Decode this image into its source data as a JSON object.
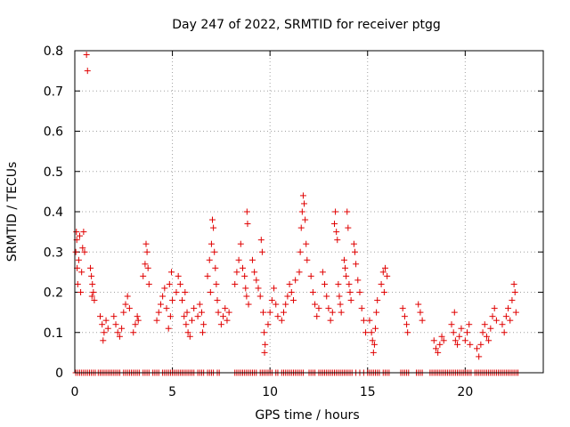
{
  "chart_data": {
    "type": "scatter",
    "title": "Day 247 of 2022, SRMTID for receiver ptgg",
    "xlabel": "GPS time / hours",
    "ylabel": "SRMTID / TECUs",
    "xlim": [
      0,
      24
    ],
    "ylim": [
      0,
      0.8
    ],
    "xticks": [
      0,
      5,
      10,
      15,
      20
    ],
    "yticks": [
      0,
      0.1,
      0.2,
      0.3,
      0.4,
      0.5,
      0.6,
      0.7,
      0.8
    ],
    "xtick_labels": [
      "0",
      "5",
      "10",
      "15",
      "20"
    ],
    "ytick_labels": [
      "0",
      "0.1",
      "0.2",
      "0.3",
      "0.4",
      "0.5",
      "0.6",
      "0.7",
      "0.8"
    ],
    "grid": true,
    "marker": "+",
    "marker_color": "#e00000",
    "series": [
      {
        "name": "SRMTID",
        "points": [
          [
            0.05,
            0.3
          ],
          [
            0.08,
            0.35
          ],
          [
            0.1,
            0.33
          ],
          [
            0.12,
            0.26
          ],
          [
            0.15,
            0.22
          ],
          [
            0.2,
            0.28
          ],
          [
            0.25,
            0.34
          ],
          [
            0.3,
            0.2
          ],
          [
            0.35,
            0.25
          ],
          [
            0.4,
            0.31
          ],
          [
            0.45,
            0.35
          ],
          [
            0.5,
            0.3
          ],
          [
            0.6,
            0.79
          ],
          [
            0.65,
            0.75
          ],
          [
            0.8,
            0.26
          ],
          [
            0.85,
            0.24
          ],
          [
            0.9,
            0.22
          ],
          [
            0.95,
            0.2
          ],
          [
            1.0,
            0.18
          ],
          [
            0.88,
            0.19
          ],
          [
            1.3,
            0.14
          ],
          [
            1.4,
            0.12
          ],
          [
            1.5,
            0.1
          ],
          [
            1.6,
            0.13
          ],
          [
            1.7,
            0.11
          ],
          [
            1.45,
            0.08
          ],
          [
            2.0,
            0.14
          ],
          [
            2.1,
            0.12
          ],
          [
            2.2,
            0.1
          ],
          [
            2.3,
            0.09
          ],
          [
            2.4,
            0.11
          ],
          [
            2.5,
            0.15
          ],
          [
            2.6,
            0.17
          ],
          [
            2.7,
            0.19
          ],
          [
            2.8,
            0.16
          ],
          [
            3.0,
            0.1
          ],
          [
            3.1,
            0.12
          ],
          [
            3.2,
            0.14
          ],
          [
            3.25,
            0.13
          ],
          [
            3.5,
            0.24
          ],
          [
            3.6,
            0.27
          ],
          [
            3.7,
            0.3
          ],
          [
            3.75,
            0.26
          ],
          [
            3.8,
            0.22
          ],
          [
            3.65,
            0.32
          ],
          [
            4.2,
            0.13
          ],
          [
            4.3,
            0.15
          ],
          [
            4.4,
            0.17
          ],
          [
            4.5,
            0.19
          ],
          [
            4.6,
            0.21
          ],
          [
            4.7,
            0.16
          ],
          [
            4.8,
            0.11
          ],
          [
            4.9,
            0.14
          ],
          [
            5.0,
            0.18
          ],
          [
            4.85,
            0.22
          ],
          [
            4.95,
            0.25
          ],
          [
            5.2,
            0.2
          ],
          [
            5.3,
            0.24
          ],
          [
            5.4,
            0.22
          ],
          [
            5.5,
            0.18
          ],
          [
            5.6,
            0.14
          ],
          [
            5.7,
            0.12
          ],
          [
            5.8,
            0.1
          ],
          [
            5.9,
            0.09
          ],
          [
            6.0,
            0.13
          ],
          [
            6.1,
            0.16
          ],
          [
            5.65,
            0.2
          ],
          [
            5.75,
            0.15
          ],
          [
            6.3,
            0.14
          ],
          [
            6.4,
            0.17
          ],
          [
            6.5,
            0.15
          ],
          [
            6.6,
            0.12
          ],
          [
            6.55,
            0.1
          ],
          [
            6.8,
            0.24
          ],
          [
            6.9,
            0.28
          ],
          [
            7.0,
            0.32
          ],
          [
            7.05,
            0.38
          ],
          [
            7.1,
            0.36
          ],
          [
            7.15,
            0.3
          ],
          [
            7.2,
            0.26
          ],
          [
            7.25,
            0.22
          ],
          [
            7.3,
            0.18
          ],
          [
            7.35,
            0.15
          ],
          [
            6.95,
            0.2
          ],
          [
            7.5,
            0.12
          ],
          [
            7.6,
            0.14
          ],
          [
            7.7,
            0.16
          ],
          [
            7.8,
            0.13
          ],
          [
            7.9,
            0.15
          ],
          [
            8.2,
            0.22
          ],
          [
            8.3,
            0.25
          ],
          [
            8.4,
            0.28
          ],
          [
            8.5,
            0.32
          ],
          [
            8.6,
            0.26
          ],
          [
            8.7,
            0.24
          ],
          [
            8.75,
            0.21
          ],
          [
            8.8,
            0.19
          ],
          [
            8.9,
            0.17
          ],
          [
            8.85,
            0.37
          ],
          [
            8.82,
            0.4
          ],
          [
            9.1,
            0.28
          ],
          [
            9.2,
            0.25
          ],
          [
            9.3,
            0.23
          ],
          [
            9.4,
            0.21
          ],
          [
            9.5,
            0.19
          ],
          [
            9.55,
            0.33
          ],
          [
            9.6,
            0.3
          ],
          [
            9.65,
            0.15
          ],
          [
            9.7,
            0.1
          ],
          [
            9.75,
            0.07
          ],
          [
            9.72,
            0.05
          ],
          [
            9.9,
            0.12
          ],
          [
            10.0,
            0.15
          ],
          [
            10.1,
            0.18
          ],
          [
            10.2,
            0.21
          ],
          [
            10.3,
            0.17
          ],
          [
            10.4,
            0.14
          ],
          [
            10.6,
            0.13
          ],
          [
            10.7,
            0.15
          ],
          [
            10.8,
            0.17
          ],
          [
            10.9,
            0.19
          ],
          [
            11.0,
            0.22
          ],
          [
            11.1,
            0.2
          ],
          [
            11.2,
            0.18
          ],
          [
            11.3,
            0.23
          ],
          [
            11.5,
            0.25
          ],
          [
            11.55,
            0.3
          ],
          [
            11.6,
            0.36
          ],
          [
            11.65,
            0.4
          ],
          [
            11.7,
            0.44
          ],
          [
            11.75,
            0.42
          ],
          [
            11.8,
            0.38
          ],
          [
            11.85,
            0.32
          ],
          [
            11.9,
            0.28
          ],
          [
            12.1,
            0.24
          ],
          [
            12.2,
            0.2
          ],
          [
            12.3,
            0.17
          ],
          [
            12.4,
            0.14
          ],
          [
            12.5,
            0.16
          ],
          [
            12.7,
            0.25
          ],
          [
            12.8,
            0.22
          ],
          [
            12.9,
            0.19
          ],
          [
            13.0,
            0.16
          ],
          [
            13.1,
            0.13
          ],
          [
            13.2,
            0.15
          ],
          [
            13.3,
            0.37
          ],
          [
            13.35,
            0.4
          ],
          [
            13.4,
            0.35
          ],
          [
            13.45,
            0.33
          ],
          [
            13.5,
            0.22
          ],
          [
            13.55,
            0.19
          ],
          [
            13.6,
            0.17
          ],
          [
            13.65,
            0.15
          ],
          [
            13.8,
            0.28
          ],
          [
            13.85,
            0.26
          ],
          [
            13.9,
            0.24
          ],
          [
            13.95,
            0.4
          ],
          [
            14.0,
            0.36
          ],
          [
            14.05,
            0.22
          ],
          [
            14.1,
            0.2
          ],
          [
            14.15,
            0.18
          ],
          [
            14.3,
            0.32
          ],
          [
            14.35,
            0.3
          ],
          [
            14.4,
            0.27
          ],
          [
            14.5,
            0.23
          ],
          [
            14.6,
            0.2
          ],
          [
            14.7,
            0.16
          ],
          [
            14.8,
            0.13
          ],
          [
            14.9,
            0.1
          ],
          [
            15.1,
            0.13
          ],
          [
            15.2,
            0.1
          ],
          [
            15.25,
            0.08
          ],
          [
            15.3,
            0.05
          ],
          [
            15.35,
            0.07
          ],
          [
            15.4,
            0.11
          ],
          [
            15.45,
            0.15
          ],
          [
            15.5,
            0.18
          ],
          [
            15.7,
            0.22
          ],
          [
            15.8,
            0.25
          ],
          [
            15.9,
            0.26
          ],
          [
            16.0,
            0.24
          ],
          [
            15.85,
            0.2
          ],
          [
            16.8,
            0.16
          ],
          [
            16.9,
            0.14
          ],
          [
            17.0,
            0.12
          ],
          [
            17.05,
            0.1
          ],
          [
            17.6,
            0.17
          ],
          [
            17.7,
            0.15
          ],
          [
            17.8,
            0.13
          ],
          [
            18.4,
            0.08
          ],
          [
            18.5,
            0.06
          ],
          [
            18.6,
            0.05
          ],
          [
            18.7,
            0.07
          ],
          [
            18.8,
            0.09
          ],
          [
            18.9,
            0.08
          ],
          [
            19.3,
            0.12
          ],
          [
            19.4,
            0.1
          ],
          [
            19.5,
            0.08
          ],
          [
            19.6,
            0.07
          ],
          [
            19.7,
            0.09
          ],
          [
            19.8,
            0.11
          ],
          [
            19.45,
            0.15
          ],
          [
            20.0,
            0.08
          ],
          [
            20.1,
            0.1
          ],
          [
            20.2,
            0.12
          ],
          [
            20.25,
            0.07
          ],
          [
            20.6,
            0.06
          ],
          [
            20.7,
            0.04
          ],
          [
            20.8,
            0.07
          ],
          [
            20.9,
            0.1
          ],
          [
            21.0,
            0.12
          ],
          [
            21.1,
            0.09
          ],
          [
            21.2,
            0.08
          ],
          [
            21.3,
            0.11
          ],
          [
            21.4,
            0.14
          ],
          [
            21.5,
            0.16
          ],
          [
            21.6,
            0.13
          ],
          [
            21.9,
            0.12
          ],
          [
            22.0,
            0.1
          ],
          [
            22.1,
            0.14
          ],
          [
            22.2,
            0.16
          ],
          [
            22.3,
            0.13
          ],
          [
            22.4,
            0.18
          ],
          [
            22.5,
            0.22
          ],
          [
            22.55,
            0.2
          ],
          [
            22.6,
            0.15
          ]
        ],
        "zero_points": [
          0.05,
          0.15,
          0.25,
          0.35,
          0.45,
          0.55,
          0.65,
          0.75,
          0.85,
          0.95,
          1.05,
          1.2,
          1.3,
          1.4,
          1.5,
          1.6,
          1.7,
          1.8,
          1.9,
          2.0,
          2.1,
          2.2,
          2.3,
          2.5,
          2.6,
          2.7,
          2.8,
          2.9,
          3.0,
          3.1,
          3.2,
          3.3,
          3.5,
          3.6,
          3.7,
          3.8,
          4.0,
          4.1,
          4.2,
          4.3,
          4.5,
          4.6,
          4.7,
          4.8,
          4.9,
          5.0,
          5.1,
          5.2,
          5.3,
          5.4,
          5.5,
          5.6,
          5.7,
          5.8,
          5.9,
          6.0,
          6.1,
          6.3,
          6.4,
          6.5,
          6.6,
          6.8,
          6.9,
          7.0,
          7.1,
          7.3,
          7.4,
          8.2,
          8.3,
          8.4,
          8.5,
          8.6,
          8.7,
          8.8,
          8.9,
          9.0,
          9.1,
          9.2,
          9.3,
          9.5,
          9.6,
          9.7,
          9.8,
          9.9,
          10.0,
          10.1,
          10.3,
          10.4,
          10.6,
          10.7,
          10.8,
          10.9,
          11.0,
          11.1,
          11.2,
          11.3,
          11.4,
          11.5,
          11.6,
          11.7,
          12.0,
          12.1,
          12.2,
          12.3,
          12.5,
          12.6,
          12.7,
          12.8,
          12.9,
          13.0,
          13.1,
          13.2,
          13.3,
          13.4,
          13.5,
          13.6,
          13.7,
          13.8,
          13.9,
          14.0,
          14.1,
          14.2,
          14.4,
          14.6,
          14.8,
          15.0,
          15.1,
          15.2,
          15.3,
          15.4,
          15.5,
          15.6,
          15.8,
          15.9,
          16.0,
          16.1,
          16.7,
          16.8,
          16.9,
          17.0,
          17.1,
          17.5,
          17.6,
          17.7,
          17.8,
          18.2,
          18.3,
          18.4,
          18.5,
          18.6,
          18.7,
          18.8,
          18.9,
          19.0,
          19.1,
          19.2,
          19.3,
          19.4,
          19.5,
          19.6,
          19.7,
          19.8,
          19.9,
          20.0,
          20.1,
          20.2,
          20.3,
          20.5,
          20.6,
          20.7,
          20.8,
          20.9,
          21.0,
          21.1,
          21.2,
          21.3,
          21.4,
          21.5,
          21.6,
          21.7,
          21.8,
          21.9,
          22.0,
          22.1,
          22.2,
          22.3,
          22.4,
          22.5,
          22.6,
          22.7
        ]
      }
    ]
  }
}
